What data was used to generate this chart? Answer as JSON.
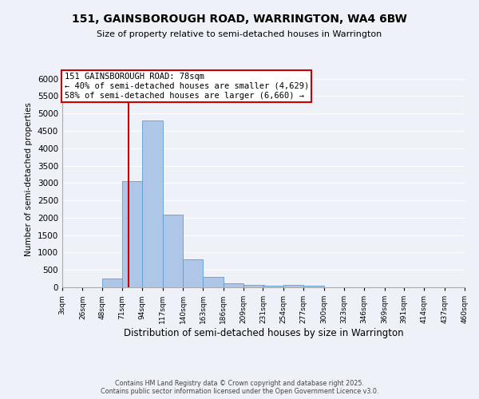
{
  "title": "151, GAINSBOROUGH ROAD, WARRINGTON, WA4 6BW",
  "subtitle": "Size of property relative to semi-detached houses in Warrington",
  "xlabel": "Distribution of semi-detached houses by size in Warrington",
  "ylabel": "Number of semi-detached properties",
  "bar_color": "#aec6e8",
  "bar_edge_color": "#5a9fd4",
  "bin_edges": [
    3,
    26,
    48,
    71,
    94,
    117,
    140,
    163,
    186,
    209,
    231,
    254,
    277,
    300,
    323,
    346,
    369,
    391,
    414,
    437,
    460
  ],
  "bin_labels": [
    "3sqm",
    "26sqm",
    "48sqm",
    "71sqm",
    "94sqm",
    "117sqm",
    "140sqm",
    "163sqm",
    "186sqm",
    "209sqm",
    "231sqm",
    "254sqm",
    "277sqm",
    "300sqm",
    "323sqm",
    "346sqm",
    "369sqm",
    "391sqm",
    "414sqm",
    "437sqm",
    "460sqm"
  ],
  "bar_heights": [
    0,
    0,
    250,
    3050,
    4800,
    2100,
    800,
    300,
    120,
    70,
    50,
    70,
    50,
    0,
    0,
    0,
    0,
    0,
    0,
    0
  ],
  "property_size": 78,
  "vline_color": "#cc0000",
  "annotation_line1": "151 GAINSBOROUGH ROAD: 78sqm",
  "annotation_line2": "← 40% of semi-detached houses are smaller (4,629)",
  "annotation_line3": "58% of semi-detached houses are larger (6,660) →",
  "annotation_box_color": "#ffffff",
  "annotation_box_edge": "#cc0000",
  "ylim": [
    0,
    6200
  ],
  "yticks": [
    0,
    500,
    1000,
    1500,
    2000,
    2500,
    3000,
    3500,
    4000,
    4500,
    5000,
    5500,
    6000
  ],
  "footer_text": "Contains HM Land Registry data © Crown copyright and database right 2025.\nContains public sector information licensed under the Open Government Licence v3.0.",
  "background_color": "#eef2f8",
  "grid_color": "#ffffff"
}
